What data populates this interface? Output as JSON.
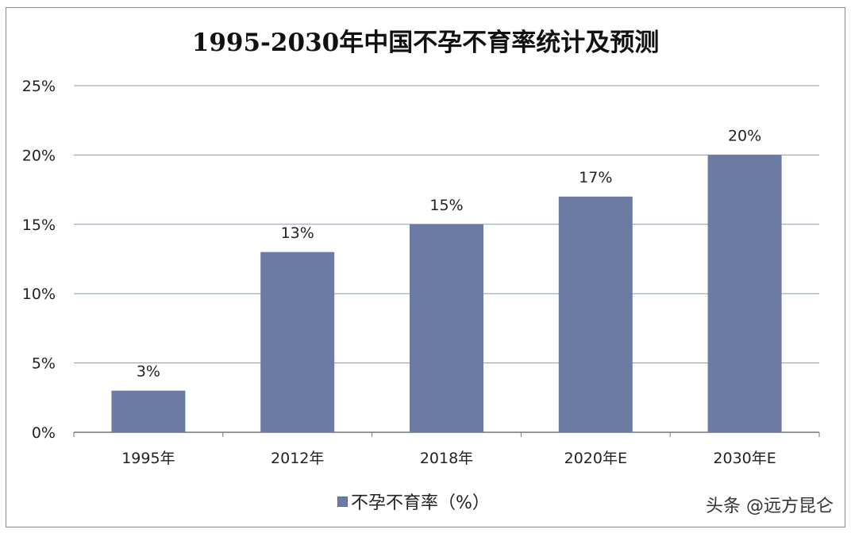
{
  "chart_data": {
    "type": "bar",
    "title": "1995-2030年中国不孕不育率统计及预测",
    "categories": [
      "1995年",
      "2012年",
      "2018年",
      "2020年E",
      "2030年E"
    ],
    "series": [
      {
        "name": "不孕不育率（%）",
        "values": [
          3,
          13,
          15,
          17,
          20
        ],
        "color": "#6b7ba3"
      }
    ],
    "data_labels": [
      "3%",
      "13%",
      "15%",
      "17%",
      "20%"
    ],
    "ylim": [
      0,
      25
    ],
    "yticks": [
      0,
      5,
      10,
      15,
      20,
      25
    ],
    "ytick_labels": [
      "0%",
      "5%",
      "10%",
      "15%",
      "20%",
      "25%"
    ],
    "xlabel": "",
    "ylabel": "",
    "grid": true,
    "legend": "bottom-center"
  },
  "watermark": "头条 @远方昆仑"
}
